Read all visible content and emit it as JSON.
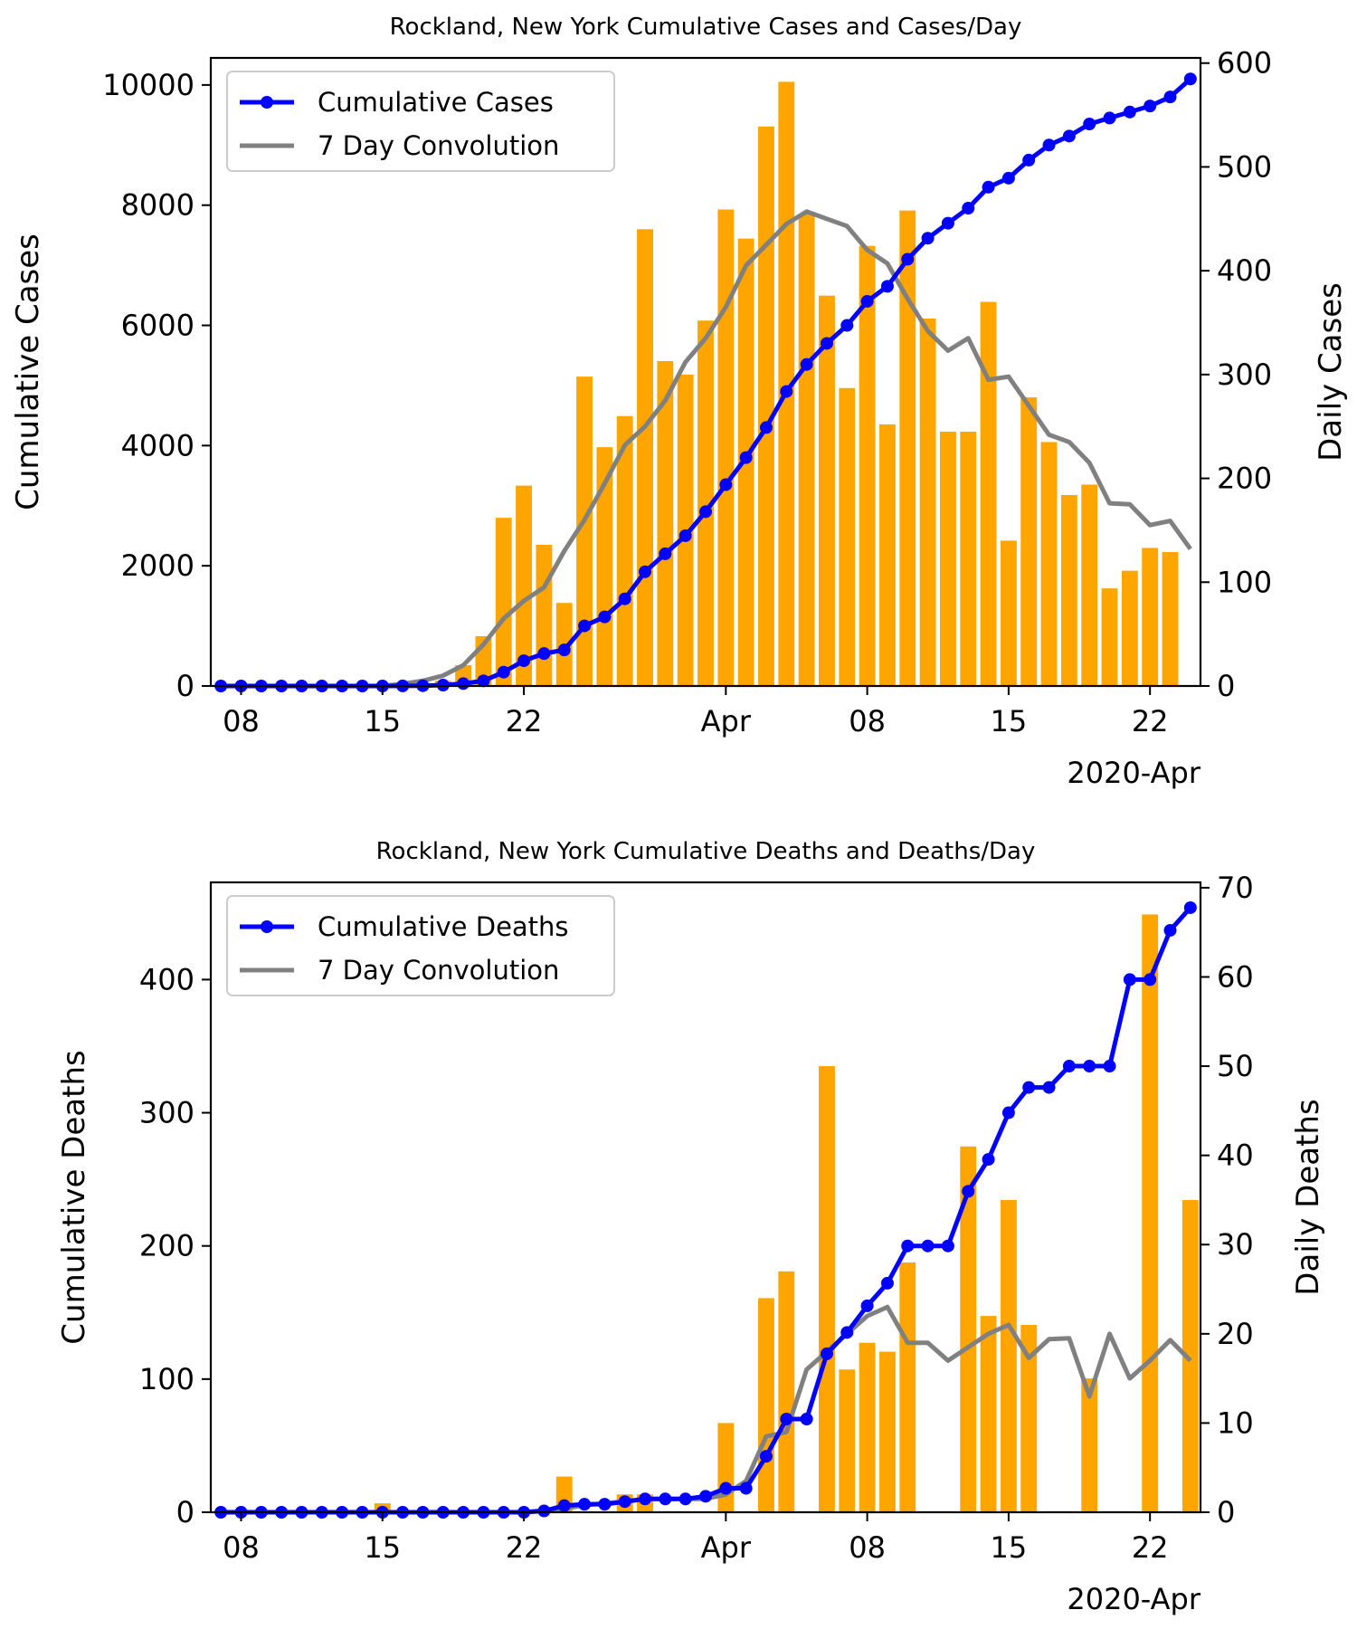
{
  "chart_data": [
    {
      "type": "bar+line",
      "title": "Rockland, New York Cumulative Cases and Cases/Day",
      "ylabel_left": "Cumulative Cases",
      "ylabel_right": "Daily Cases",
      "x_ticks": [
        "08",
        "15",
        "22",
        "Apr",
        "08",
        "15",
        "22"
      ],
      "x_offset_label": "2020-Apr",
      "y_left_ticks": [
        "0",
        "2000",
        "4000",
        "6000",
        "8000",
        "10000"
      ],
      "y_right_ticks": [
        "0",
        "100",
        "200",
        "300",
        "400",
        "500",
        "600"
      ],
      "y_left_lim": [
        0,
        10450
      ],
      "y_right_lim": [
        0,
        605
      ],
      "dates": [
        "2020-03-07",
        "2020-03-08",
        "2020-03-09",
        "2020-03-10",
        "2020-03-11",
        "2020-03-12",
        "2020-03-13",
        "2020-03-14",
        "2020-03-15",
        "2020-03-16",
        "2020-03-17",
        "2020-03-18",
        "2020-03-19",
        "2020-03-20",
        "2020-03-21",
        "2020-03-22",
        "2020-03-23",
        "2020-03-24",
        "2020-03-25",
        "2020-03-26",
        "2020-03-27",
        "2020-03-28",
        "2020-03-29",
        "2020-03-30",
        "2020-03-31",
        "2020-04-01",
        "2020-04-02",
        "2020-04-03",
        "2020-04-04",
        "2020-04-05",
        "2020-04-06",
        "2020-04-07",
        "2020-04-08",
        "2020-04-09",
        "2020-04-10",
        "2020-04-11",
        "2020-04-12",
        "2020-04-13",
        "2020-04-14",
        "2020-04-15",
        "2020-04-16",
        "2020-04-17",
        "2020-04-18",
        "2020-04-19",
        "2020-04-20",
        "2020-04-21",
        "2020-04-22",
        "2020-04-23",
        "2020-04-24"
      ],
      "x_tick_dates": [
        "2020-03-08",
        "2020-03-15",
        "2020-03-22",
        "2020-04-01",
        "2020-04-08",
        "2020-04-15",
        "2020-04-22"
      ],
      "series": [
        {
          "name": "Cumulative Cases",
          "axis": "left",
          "kind": "line-markers",
          "color": "#0000ff",
          "values": [
            0,
            0,
            0,
            0,
            0,
            0,
            0,
            0,
            0,
            2,
            4,
            15,
            40,
            85,
            230,
            420,
            540,
            600,
            1000,
            1150,
            1450,
            1900,
            2200,
            2500,
            2900,
            3350,
            3800,
            4300,
            4900,
            5350,
            5700,
            6000,
            6400,
            6650,
            7100,
            7450,
            7700,
            7950,
            8300,
            8450,
            8750,
            9000,
            9150,
            9350,
            9450,
            9550,
            9650,
            9800,
            10100
          ]
        },
        {
          "name": "7 Day Convolution",
          "axis": "right",
          "kind": "line",
          "color": "#808080",
          "values": [
            0,
            0,
            0,
            0,
            0,
            0,
            0,
            0,
            0,
            2,
            5,
            10,
            20,
            40,
            65,
            82,
            95,
            130,
            160,
            195,
            232,
            250,
            275,
            312,
            335,
            365,
            405,
            425,
            445,
            457,
            450,
            443,
            420,
            407,
            373,
            342,
            323,
            335,
            295,
            298,
            270,
            242,
            235,
            215,
            176,
            175,
            155,
            159,
            132
          ]
        },
        {
          "name": "Daily Cases",
          "axis": "right",
          "kind": "bar",
          "color": "#ffa500",
          "values": [
            0,
            0,
            0,
            0,
            0,
            0,
            0,
            0,
            0,
            0,
            1,
            5,
            20,
            48,
            162,
            193,
            136,
            80,
            298,
            230,
            260,
            440,
            313,
            300,
            352,
            459,
            431,
            539,
            582,
            455,
            376,
            287,
            424,
            252,
            458,
            354,
            245,
            245,
            370,
            140,
            278,
            235,
            184,
            194,
            94,
            111,
            133,
            129,
            0
          ]
        }
      ]
    },
    {
      "type": "bar+line",
      "title": "Rockland, New York Cumulative Deaths and Deaths/Day",
      "ylabel_left": "Cumulative Deaths",
      "ylabel_right": "Daily Deaths",
      "x_ticks": [
        "08",
        "15",
        "22",
        "Apr",
        "08",
        "15",
        "22"
      ],
      "x_offset_label": "2020-Apr",
      "y_left_ticks": [
        "0",
        "100",
        "200",
        "300",
        "400"
      ],
      "y_right_ticks": [
        "0",
        "10",
        "20",
        "30",
        "40",
        "50",
        "60",
        "70"
      ],
      "y_left_lim": [
        0,
        473
      ],
      "y_right_lim": [
        0,
        70.6
      ],
      "dates": [
        "2020-03-07",
        "2020-03-08",
        "2020-03-09",
        "2020-03-10",
        "2020-03-11",
        "2020-03-12",
        "2020-03-13",
        "2020-03-14",
        "2020-03-15",
        "2020-03-16",
        "2020-03-17",
        "2020-03-18",
        "2020-03-19",
        "2020-03-20",
        "2020-03-21",
        "2020-03-22",
        "2020-03-23",
        "2020-03-24",
        "2020-03-25",
        "2020-03-26",
        "2020-03-27",
        "2020-03-28",
        "2020-03-29",
        "2020-03-30",
        "2020-03-31",
        "2020-04-01",
        "2020-04-02",
        "2020-04-03",
        "2020-04-04",
        "2020-04-05",
        "2020-04-06",
        "2020-04-07",
        "2020-04-08",
        "2020-04-09",
        "2020-04-10",
        "2020-04-11",
        "2020-04-12",
        "2020-04-13",
        "2020-04-14",
        "2020-04-15",
        "2020-04-16",
        "2020-04-17",
        "2020-04-18",
        "2020-04-19",
        "2020-04-20",
        "2020-04-21",
        "2020-04-22",
        "2020-04-23",
        "2020-04-24"
      ],
      "x_tick_dates": [
        "2020-03-08",
        "2020-03-15",
        "2020-03-22",
        "2020-04-01",
        "2020-04-08",
        "2020-04-15",
        "2020-04-22"
      ],
      "series": [
        {
          "name": "Cumulative Deaths",
          "axis": "left",
          "kind": "line-markers",
          "color": "#0000ff",
          "values": [
            0,
            0,
            0,
            0,
            0,
            0,
            0,
            0,
            0,
            0,
            0,
            0,
            0,
            0,
            0,
            0,
            1,
            5,
            6,
            6,
            8,
            10,
            10,
            10,
            12,
            18,
            18,
            42,
            70,
            70,
            119,
            135,
            155,
            172,
            200,
            200,
            200,
            241,
            265,
            300,
            319,
            319,
            335,
            335,
            335,
            400,
            400,
            437,
            454
          ]
        },
        {
          "name": "7 Day Convolution",
          "axis": "right",
          "kind": "line",
          "color": "#808080",
          "values": [
            0,
            0,
            0,
            0,
            0,
            0,
            0,
            0,
            0,
            0,
            0,
            0,
            0,
            0,
            0,
            0,
            0.2,
            0.4,
            0.8,
            1,
            1.2,
            1.5,
            1.5,
            1.5,
            1.5,
            2,
            3.5,
            8.5,
            9,
            16,
            18,
            20,
            22,
            23,
            19,
            19,
            17,
            18.5,
            20,
            21,
            17.3,
            19.4,
            19.5,
            13,
            20,
            15,
            17,
            19.3,
            17
          ]
        },
        {
          "name": "Daily Deaths",
          "axis": "right",
          "kind": "bar",
          "color": "#ffa500",
          "values": [
            0,
            0,
            0,
            0,
            0,
            0,
            0,
            0,
            1,
            0,
            0,
            0,
            0,
            0,
            0,
            0,
            0,
            4,
            0,
            0,
            2,
            2,
            0,
            0,
            0,
            10,
            0,
            24,
            27,
            0,
            50,
            16,
            19,
            18,
            28,
            0,
            0,
            41,
            22,
            35,
            21,
            0,
            0,
            15,
            0,
            0,
            67,
            0,
            35
          ]
        }
      ]
    }
  ]
}
